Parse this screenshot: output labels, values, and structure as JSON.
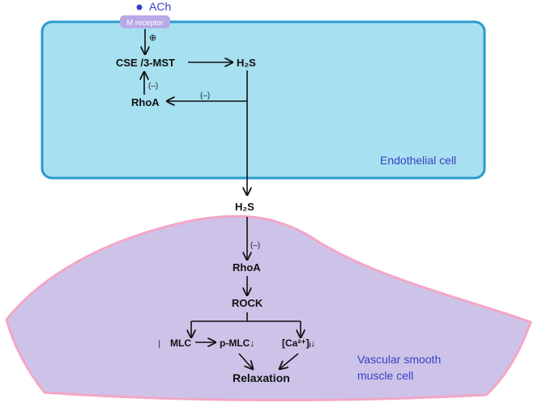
{
  "colors": {
    "endothelial_fill": "#a7e0f0",
    "endothelial_stroke": "#2a9ad0",
    "smooth_muscle_fill": "#cdc3e9",
    "smooth_muscle_stroke": "#f3a6c6",
    "receptor_fill": "#b9a9e6",
    "ach_dot": "#3a3fc4",
    "cell_label": "#3a3fc4"
  },
  "ach": {
    "label": "ACh"
  },
  "receptor": {
    "label": "M receptor"
  },
  "endothelial": {
    "label": "Endothelial cell",
    "plus_sign": "⊕",
    "enzyme": "CSE /3-MST",
    "product": "H₂S",
    "rhoa": "RhoA",
    "inhibit_vertical": "(–)",
    "inhibit_horizontal": "(–)"
  },
  "between": {
    "h2s": "H₂S"
  },
  "smooth_muscle": {
    "label_line1": "Vascular smooth",
    "label_line2": "muscle cell",
    "inhibit": "(–)",
    "rhoa": "RhoA",
    "rock": "ROCK",
    "mlc_mark": "∣",
    "mlc": "MLC",
    "pmlc": "p-MLC↓",
    "ca": "[Ca²⁺]ᵢ↓",
    "relaxation": "Relaxation"
  }
}
